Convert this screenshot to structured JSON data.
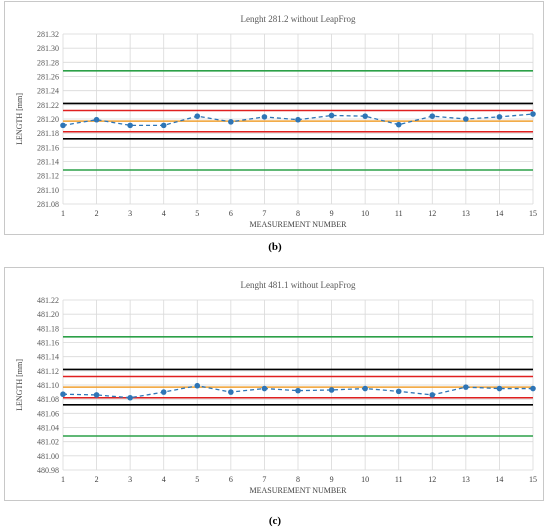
{
  "charts": [
    {
      "caption": "(b)",
      "chart_data": {
        "type": "line",
        "title": "Lenght 281.2 without LeapFrog",
        "xlabel": "MEASUREMENT NUMBER",
        "ylabel": "LENGTH [mm]",
        "x": [
          1,
          2,
          3,
          4,
          5,
          6,
          7,
          8,
          9,
          10,
          11,
          12,
          13,
          14,
          15
        ],
        "xlim": [
          1,
          15
        ],
        "ylim": [
          281.08,
          281.32
        ],
        "y_ticks": [
          "281.08",
          "281.10",
          "281.12",
          "281.14",
          "281.16",
          "281.18",
          "281.20",
          "281.22",
          "281.24",
          "281.26",
          "281.28",
          "281.30",
          "281.32"
        ],
        "grid": true,
        "series": [
          {
            "values": [
              281.191,
              281.199,
              281.191,
              281.191,
              281.204,
              281.196,
              281.203,
              281.199,
              281.205,
              281.204,
              281.192,
              281.204,
              281.2,
              281.203,
              281.207
            ],
            "color": "#2e75b6",
            "style": "dashed-markers"
          }
        ],
        "reference_lines": [
          {
            "y": 281.268,
            "color": "#2ca048"
          },
          {
            "y": 281.222,
            "color": "#000000"
          },
          {
            "y": 281.212,
            "color": "#e02020"
          },
          {
            "y": 281.197,
            "color": "#f0a030"
          },
          {
            "y": 281.182,
            "color": "#e02020"
          },
          {
            "y": 281.172,
            "color": "#000000"
          },
          {
            "y": 281.128,
            "color": "#2ca048"
          }
        ]
      }
    },
    {
      "caption": "(c)",
      "chart_data": {
        "type": "line",
        "title": "Lenght 481.1 without LeapFrog",
        "xlabel": "MEASUREMENT NUMBER",
        "ylabel": "LENGTH [mm]",
        "x": [
          1,
          2,
          3,
          4,
          5,
          6,
          7,
          8,
          9,
          10,
          11,
          12,
          13,
          14,
          15
        ],
        "xlim": [
          1,
          15
        ],
        "ylim": [
          480.98,
          481.22
        ],
        "y_ticks": [
          "480.98",
          "481.00",
          "481.02",
          "481.04",
          "481.06",
          "481.08",
          "481.10",
          "481.12",
          "481.14",
          "481.16",
          "481.18",
          "481.20",
          "481.22"
        ],
        "grid": true,
        "series": [
          {
            "values": [
              481.087,
              481.086,
              481.082,
              481.09,
              481.099,
              481.09,
              481.095,
              481.092,
              481.093,
              481.095,
              481.091,
              481.086,
              481.097,
              481.095,
              481.095
            ],
            "color": "#2e75b6",
            "style": "dashed-markers"
          }
        ],
        "reference_lines": [
          {
            "y": 481.168,
            "color": "#2ca048"
          },
          {
            "y": 481.122,
            "color": "#000000"
          },
          {
            "y": 481.112,
            "color": "#e02020"
          },
          {
            "y": 481.097,
            "color": "#f0a030"
          },
          {
            "y": 481.082,
            "color": "#e02020"
          },
          {
            "y": 481.072,
            "color": "#000000"
          },
          {
            "y": 481.028,
            "color": "#2ca048"
          }
        ]
      }
    }
  ]
}
